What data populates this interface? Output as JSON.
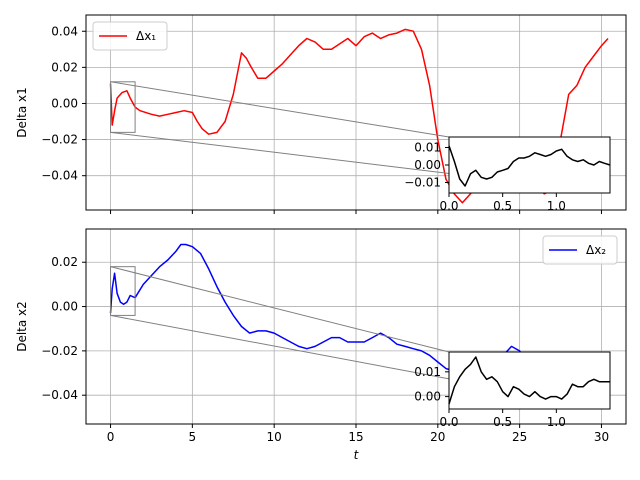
{
  "chart_data": [
    {
      "type": "line",
      "ylabel": "Delta x1",
      "xlim": [
        -1.5,
        31.5
      ],
      "ylim": [
        -0.059,
        0.049
      ],
      "x_ticks": [
        0,
        5,
        10,
        15,
        20,
        25,
        30
      ],
      "x_tick_labels": [
        "",
        "",
        "",
        "",
        "",
        "",
        ""
      ],
      "y_ticks": [
        0.04,
        0.02,
        0.0,
        -0.02,
        -0.04
      ],
      "y_tick_labels": [
        "0.04",
        "0.02",
        "0.00",
        "−0.02",
        "−0.04"
      ],
      "grid": true,
      "legend_position": "upper-left",
      "series": [
        {
          "name": "Δx₁",
          "color": "#ff0000",
          "x": [
            0,
            0.1,
            0.25,
            0.4,
            0.7,
            1.0,
            1.2,
            1.5,
            1.8,
            2.5,
            3.0,
            3.5,
            4.0,
            4.5,
            5.0,
            5.3,
            5.6,
            6.0,
            6.5,
            7.0,
            7.5,
            8.0,
            8.3,
            8.6,
            9.0,
            9.5,
            10.0,
            10.5,
            11.0,
            11.5,
            12.0,
            12.5,
            13.0,
            13.5,
            14.0,
            14.5,
            15.0,
            15.5,
            16.0,
            16.5,
            17.0,
            17.5,
            18.0,
            18.5,
            19.0,
            19.5,
            20.0,
            20.5,
            21.0,
            21.5,
            22.0,
            22.5,
            23.0,
            23.5,
            24.0,
            24.5,
            25.0,
            25.5,
            26.0,
            26.5,
            27.0,
            27.5,
            28.0,
            28.5,
            29.0,
            29.5,
            30.0,
            30.4
          ],
          "y": [
            0.011,
            -0.012,
            -0.004,
            0.003,
            0.006,
            0.007,
            0.003,
            -0.002,
            -0.004,
            -0.006,
            -0.007,
            -0.006,
            -0.005,
            -0.004,
            -0.005,
            -0.01,
            -0.014,
            -0.017,
            -0.016,
            -0.01,
            0.005,
            0.028,
            0.025,
            0.02,
            0.014,
            0.014,
            0.018,
            0.022,
            0.027,
            0.032,
            0.036,
            0.034,
            0.03,
            0.03,
            0.033,
            0.036,
            0.032,
            0.037,
            0.039,
            0.036,
            0.038,
            0.039,
            0.041,
            0.04,
            0.03,
            0.01,
            -0.02,
            -0.042,
            -0.05,
            -0.055,
            -0.05,
            -0.042,
            -0.035,
            -0.03,
            -0.028,
            -0.033,
            -0.04,
            -0.038,
            -0.045,
            -0.05,
            -0.048,
            -0.02,
            0.005,
            0.01,
            0.02,
            0.026,
            0.032,
            0.036
          ]
        }
      ],
      "inset": {
        "xlim": [
          0,
          1.5
        ],
        "ylim": [
          -0.016,
          0.016
        ],
        "x_ticks": [
          0.0,
          0.5,
          1.0
        ],
        "x_tick_labels": [
          "0.0",
          "0.5",
          "1.0"
        ],
        "y_ticks": [
          0.01,
          0.0,
          -0.01
        ],
        "y_tick_labels": [
          "0.01",
          "0.00",
          "−0.01"
        ],
        "color": "#000000",
        "x": [
          0,
          0.05,
          0.1,
          0.15,
          0.2,
          0.25,
          0.3,
          0.35,
          0.4,
          0.45,
          0.5,
          0.55,
          0.6,
          0.65,
          0.7,
          0.75,
          0.8,
          0.85,
          0.9,
          0.95,
          1.0,
          1.05,
          1.1,
          1.15,
          1.2,
          1.25,
          1.3,
          1.35,
          1.4,
          1.45,
          1.5
        ],
        "y": [
          0.011,
          0.002,
          -0.008,
          -0.012,
          -0.005,
          -0.003,
          -0.007,
          -0.008,
          -0.007,
          -0.004,
          -0.003,
          -0.002,
          0.002,
          0.004,
          0.004,
          0.005,
          0.007,
          0.006,
          0.005,
          0.006,
          0.008,
          0.009,
          0.005,
          0.003,
          0.002,
          0.003,
          0.001,
          0.0,
          0.002,
          0.001,
          0.0
        ]
      },
      "zoom_box": {
        "x": [
          0,
          1.5
        ],
        "y": [
          -0.016,
          0.012
        ]
      }
    },
    {
      "type": "line",
      "xlabel": "t",
      "ylabel": "Delta x2",
      "xlim": [
        -1.5,
        31.5
      ],
      "ylim": [
        -0.053,
        0.035
      ],
      "x_ticks": [
        0,
        5,
        10,
        15,
        20,
        25,
        30
      ],
      "x_tick_labels": [
        "0",
        "5",
        "10",
        "15",
        "20",
        "25",
        "30"
      ],
      "y_ticks": [
        0.02,
        0.0,
        -0.02,
        -0.04
      ],
      "y_tick_labels": [
        "0.02",
        "0.00",
        "−0.02",
        "−0.04"
      ],
      "grid": true,
      "legend_position": "upper-right",
      "series": [
        {
          "name": "Δx₂",
          "color": "#0000ff",
          "x": [
            0,
            0.1,
            0.25,
            0.4,
            0.6,
            0.8,
            1.0,
            1.2,
            1.5,
            2.0,
            2.5,
            3.0,
            3.5,
            4.0,
            4.3,
            4.6,
            5.0,
            5.5,
            6.0,
            6.5,
            7.0,
            7.5,
            8.0,
            8.5,
            9.0,
            9.5,
            10.0,
            10.5,
            11.0,
            11.5,
            12.0,
            12.5,
            13.0,
            13.5,
            14.0,
            14.5,
            15.0,
            15.5,
            16.0,
            16.5,
            17.0,
            17.5,
            18.0,
            18.5,
            19.0,
            19.5,
            20.0,
            20.5,
            21.0,
            21.5,
            22.0,
            22.5,
            23.0,
            23.5,
            24.0,
            24.5,
            25.0,
            25.5,
            26.0,
            26.5,
            27.0,
            27.5,
            28.0,
            28.5,
            29.0,
            29.5,
            30.0,
            30.4
          ],
          "y": [
            -0.003,
            0.008,
            0.015,
            0.006,
            0.002,
            0.001,
            0.002,
            0.005,
            0.004,
            0.01,
            0.014,
            0.018,
            0.021,
            0.025,
            0.028,
            0.028,
            0.027,
            0.024,
            0.017,
            0.009,
            0.002,
            -0.004,
            -0.009,
            -0.012,
            -0.011,
            -0.011,
            -0.012,
            -0.014,
            -0.016,
            -0.018,
            -0.019,
            -0.018,
            -0.016,
            -0.014,
            -0.014,
            -0.016,
            -0.016,
            -0.016,
            -0.014,
            -0.012,
            -0.014,
            -0.017,
            -0.018,
            -0.019,
            -0.02,
            -0.022,
            -0.025,
            -0.028,
            -0.029,
            -0.03,
            -0.029,
            -0.03,
            -0.028,
            -0.025,
            -0.022,
            -0.018,
            -0.02,
            -0.025,
            -0.03,
            -0.034,
            -0.038,
            -0.042,
            -0.045,
            -0.044,
            -0.042,
            -0.04,
            -0.038,
            -0.037
          ]
        }
      ],
      "inset": {
        "xlim": [
          0,
          1.5
        ],
        "ylim": [
          -0.005,
          0.018
        ],
        "x_ticks": [
          0.0,
          0.5,
          1.0
        ],
        "x_tick_labels": [
          "0.0",
          "0.5",
          "1.0"
        ],
        "y_ticks": [
          0.01,
          0.0
        ],
        "y_tick_labels": [
          "0.01",
          "0.00"
        ],
        "color": "#000000",
        "x": [
          0,
          0.05,
          0.1,
          0.15,
          0.2,
          0.25,
          0.3,
          0.35,
          0.4,
          0.45,
          0.5,
          0.55,
          0.6,
          0.65,
          0.7,
          0.75,
          0.8,
          0.85,
          0.9,
          0.95,
          1.0,
          1.05,
          1.1,
          1.15,
          1.2,
          1.25,
          1.3,
          1.35,
          1.4,
          1.45,
          1.5
        ],
        "y": [
          -0.003,
          0.004,
          0.008,
          0.011,
          0.013,
          0.016,
          0.01,
          0.007,
          0.008,
          0.006,
          0.002,
          0.0,
          0.004,
          0.003,
          0.001,
          0.0,
          0.002,
          0.0,
          -0.001,
          0.0,
          0.0,
          -0.001,
          0.001,
          0.005,
          0.004,
          0.004,
          0.006,
          0.007,
          0.006,
          0.006,
          0.006
        ]
      },
      "zoom_box": {
        "x": [
          0,
          1.5
        ],
        "y": [
          -0.004,
          0.018
        ]
      }
    }
  ]
}
